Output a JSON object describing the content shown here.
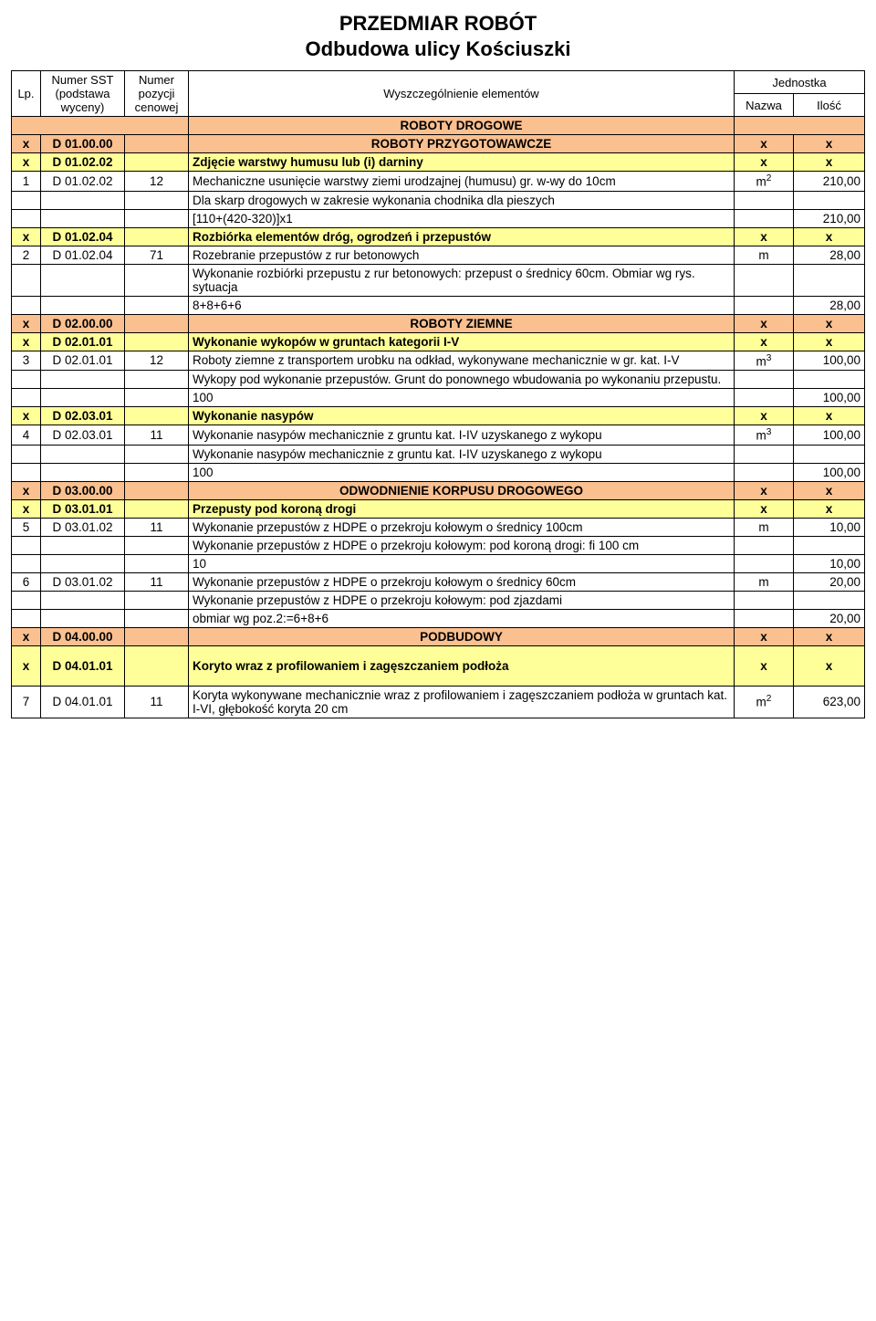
{
  "title": {
    "line1": "PRZEDMIAR ROBÓT",
    "line2": "Odbudowa ulicy Kościuszki"
  },
  "colors": {
    "section_bg": "#fac090",
    "header_bg": "#ffff99",
    "row_bg": "#ffffff",
    "border": "#000000"
  },
  "headers": {
    "lp": "Lp.",
    "sst": "Numer SST (podstawa wyceny)",
    "poz": "Numer pozycji cenowej",
    "desc": "Wyszczególnienie elementów",
    "jednostka": "Jednostka",
    "nazwa": "Nazwa",
    "ilosc": "Ilość"
  },
  "rows": [
    {
      "type": "section",
      "desc": "ROBOTY DROGOWE",
      "bg": "#fac090"
    },
    {
      "type": "header",
      "lp": "x",
      "sst": "D 01.00.00",
      "desc": "ROBOTY PRZYGOTOWAWCZE",
      "unit": "x",
      "qty": "x",
      "bg": "#fac090"
    },
    {
      "type": "header",
      "lp": "x",
      "sst": "D 01.02.02",
      "desc": "Zdjęcie warstwy humusu lub (i) darniny",
      "unit": "x",
      "qty": "x",
      "bg": "#ffff99"
    },
    {
      "type": "item",
      "lp": "1",
      "sst": "D 01.02.02",
      "poz": "12",
      "desc": "Mechaniczne usunięcie warstwy ziemi urodzajnej (humusu) gr. w-wy do 10cm",
      "unit": "m²",
      "qty": "210,00"
    },
    {
      "type": "note",
      "desc": "Dla skarp drogowych w zakresie wykonania chodnika dla pieszych"
    },
    {
      "type": "calc",
      "desc": "[110+(420-320)]x1",
      "qty": "210,00"
    },
    {
      "type": "header",
      "lp": "x",
      "sst": "D 01.02.04",
      "desc": "Rozbiórka elementów dróg, ogrodzeń i przepustów",
      "unit": "x",
      "qty": "x",
      "bg": "#ffff99"
    },
    {
      "type": "item",
      "lp": "2",
      "sst": "D 01.02.04",
      "poz": "71",
      "desc": "Rozebranie przepustów z rur betonowych",
      "unit": "m",
      "qty": "28,00"
    },
    {
      "type": "note",
      "desc": "Wykonanie rozbiórki przepustu z rur betonowych: przepust o średnicy 60cm. Obmiar wg rys. sytuacja"
    },
    {
      "type": "calc",
      "desc": "8+8+6+6",
      "qty": "28,00"
    },
    {
      "type": "header",
      "lp": "x",
      "sst": "D 02.00.00",
      "desc": "ROBOTY ZIEMNE",
      "unit": "x",
      "qty": "x",
      "bg": "#fac090"
    },
    {
      "type": "header",
      "lp": "x",
      "sst": "D 02.01.01",
      "desc": "Wykonanie wykopów w gruntach kategorii I-V",
      "unit": "x",
      "qty": "x",
      "bg": "#ffff99"
    },
    {
      "type": "item",
      "lp": "3",
      "sst": "D 02.01.01",
      "poz": "12",
      "desc": "Roboty ziemne z transportem urobku na odkład, wykonywane mechanicznie w gr. kat. I-V",
      "unit": "m³",
      "qty": "100,00"
    },
    {
      "type": "note",
      "desc": "Wykopy pod wykonanie przepustów. Grunt do ponownego wbudowania po wykonaniu przepustu."
    },
    {
      "type": "calc",
      "desc": "100",
      "qty": "100,00"
    },
    {
      "type": "header",
      "lp": "x",
      "sst": "D 02.03.01",
      "desc": "Wykonanie nasypów",
      "unit": "x",
      "qty": "x",
      "bg": "#ffff99"
    },
    {
      "type": "item",
      "lp": "4",
      "sst": "D 02.03.01",
      "poz": "11",
      "desc": "Wykonanie nasypów mechanicznie z gruntu kat. I-IV uzyskanego z wykopu",
      "unit": "m³",
      "qty": "100,00"
    },
    {
      "type": "note",
      "desc": "Wykonanie nasypów mechanicznie z gruntu kat. I-IV uzyskanego z wykopu"
    },
    {
      "type": "calc",
      "desc": "100",
      "qty": "100,00"
    },
    {
      "type": "header",
      "lp": "x",
      "sst": "D 03.00.00",
      "desc": "ODWODNIENIE KORPUSU DROGOWEGO",
      "unit": "x",
      "qty": "x",
      "bg": "#fac090"
    },
    {
      "type": "header",
      "lp": "x",
      "sst": "D 03.01.01",
      "desc": "Przepusty pod koroną drogi",
      "unit": "x",
      "qty": "x",
      "bg": "#ffff99"
    },
    {
      "type": "item",
      "lp": "5",
      "sst": "D 03.01.02",
      "poz": "11",
      "desc": "Wykonanie przepustów z HDPE o przekroju kołowym o średnicy 100cm",
      "unit": "m",
      "qty": "10,00"
    },
    {
      "type": "note",
      "desc": "Wykonanie przepustów z HDPE o przekroju kołowym: pod koroną drogi: fi 100 cm"
    },
    {
      "type": "calc",
      "desc": "10",
      "qty": "10,00"
    },
    {
      "type": "item",
      "lp": "6",
      "sst": "D 03.01.02",
      "poz": "11",
      "desc": "Wykonanie przepustów z HDPE o przekroju kołowym o średnicy 60cm",
      "unit": "m",
      "qty": "20,00"
    },
    {
      "type": "note",
      "desc": "Wykonanie przepustów z HDPE o przekroju kołowym: pod zjazdami"
    },
    {
      "type": "calc",
      "desc": "obmiar wg poz.2:=6+8+6",
      "qty": "20,00"
    },
    {
      "type": "header",
      "lp": "x",
      "sst": "D 04.00.00",
      "desc": "PODBUDOWY",
      "unit": "x",
      "qty": "x",
      "bg": "#fac090"
    },
    {
      "type": "header",
      "lp": "x",
      "sst": "D 04.01.01",
      "desc": "Koryto wraz z profilowaniem i zagęszczaniem podłoża",
      "unit": "x",
      "qty": "x",
      "bg": "#ffff99",
      "tall": true
    },
    {
      "type": "item",
      "lp": "7",
      "sst": "D 04.01.01",
      "poz": "11",
      "desc": "Koryta wykonywane mechanicznie wraz z profilowaniem i zagęszczaniem podłoża w gruntach kat. I-VI, głębokość koryta 20 cm",
      "unit": "m²",
      "qty": "623,00"
    }
  ]
}
